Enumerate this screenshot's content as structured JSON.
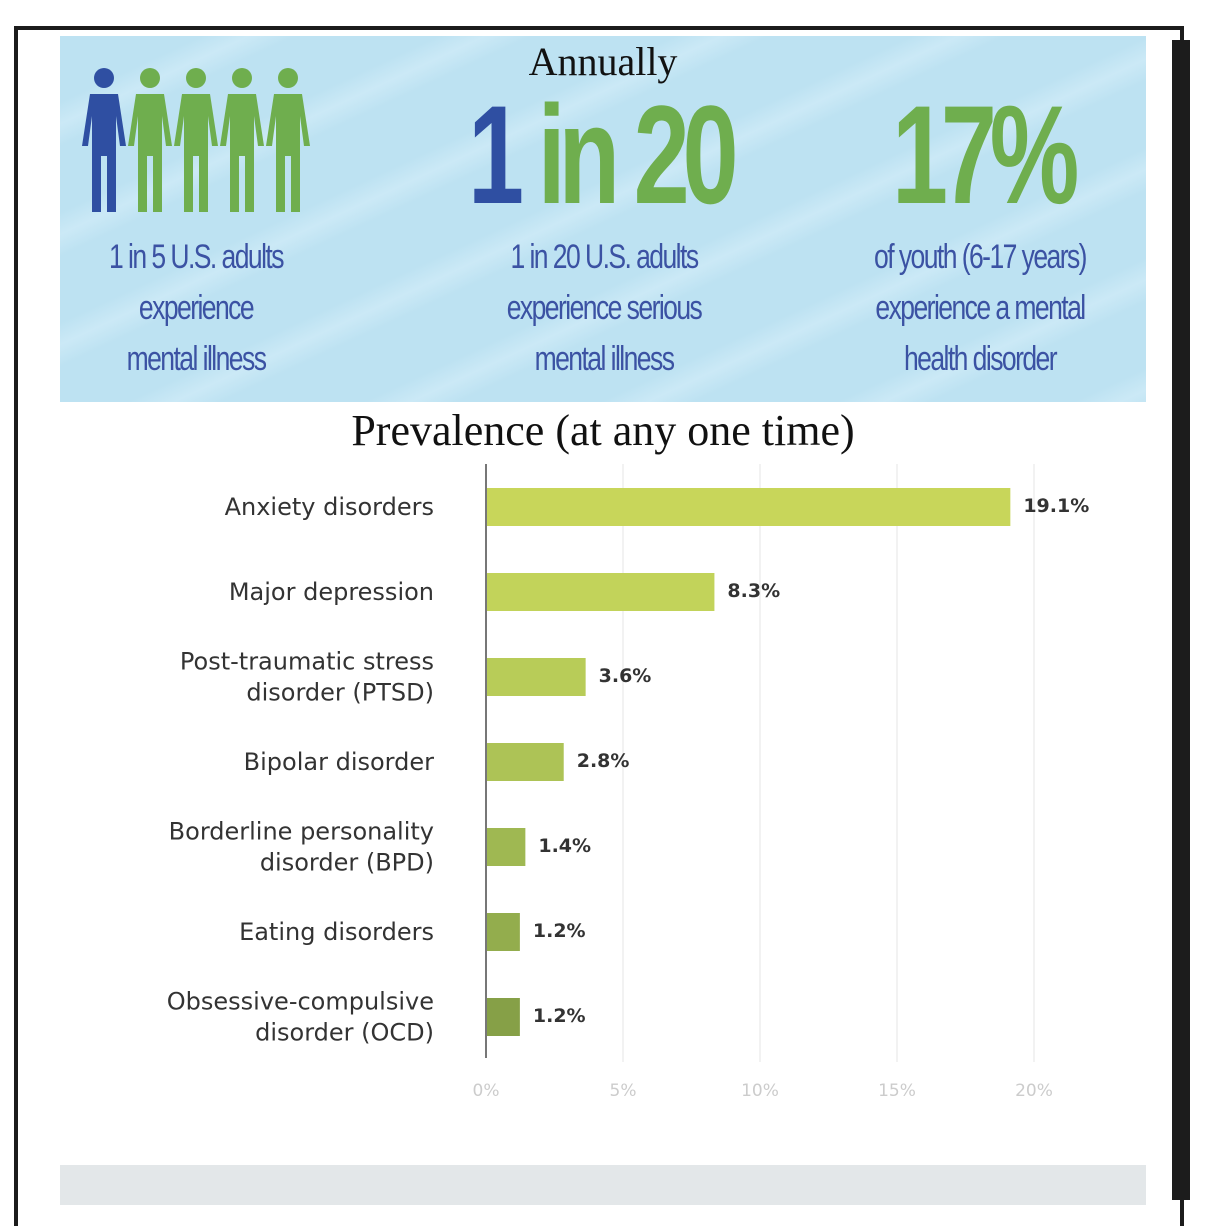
{
  "banner": {
    "heading": "Annually",
    "stat1": {
      "lines": [
        "1 in 5 U.S. adults",
        "experience",
        "mental illness"
      ],
      "people_total": 5,
      "people_highlighted": 1
    },
    "stat2": {
      "big_part1": "1",
      "big_part2": "in 20",
      "lines": [
        "1 in 20 U.S. adults",
        "experience serious",
        "mental illness"
      ]
    },
    "stat3": {
      "big": "17%",
      "lines": [
        "of youth (6-17 years)",
        "experience a mental",
        "health disorder"
      ]
    },
    "colors": {
      "blue": "#2f4fa2",
      "green": "#6fae4e",
      "text": "#3b52a3",
      "background": "#bde2f2"
    }
  },
  "chart_data": {
    "type": "bar",
    "orientation": "horizontal",
    "title": "Prevalence (at any one time)",
    "categories": [
      [
        "Anxiety disorders"
      ],
      [
        "Major depression"
      ],
      [
        "Post-traumatic stress",
        "disorder (PTSD)"
      ],
      [
        "Bipolar disorder"
      ],
      [
        "Borderline personality",
        "disorder (BPD)"
      ],
      [
        "Eating disorders"
      ],
      [
        "Obsessive-compulsive",
        "disorder (OCD)"
      ]
    ],
    "values": [
      19.1,
      8.3,
      3.6,
      2.8,
      1.4,
      1.2,
      1.2
    ],
    "data_labels": [
      "19.1%",
      "8.3%",
      "3.6%",
      "2.8%",
      "1.4%",
      "1.2%",
      "1.2%"
    ],
    "xlim": [
      0,
      20
    ],
    "xticks": [
      "0%",
      "5%",
      "10%",
      "15%",
      "20%"
    ],
    "grid": true,
    "bar_colors": [
      "#c8d65a",
      "#c2d35a",
      "#b8cc58",
      "#adc356",
      "#9fb852",
      "#93ad4d",
      "#86a047"
    ]
  }
}
